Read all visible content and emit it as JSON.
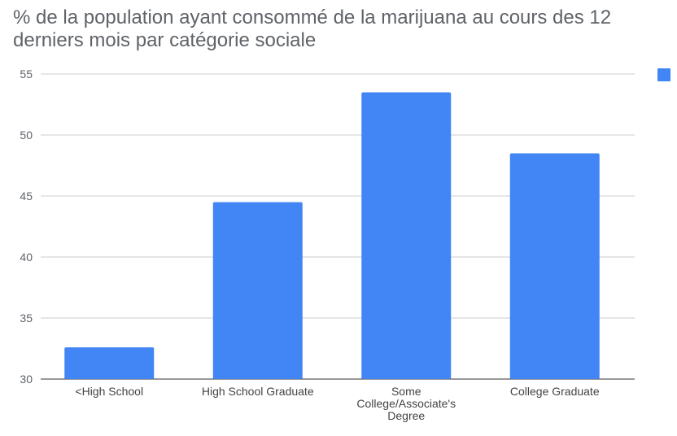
{
  "chart_data": {
    "type": "bar",
    "title": "% de la population ayant consommé de la marijuana au cours des 12 derniers mois par catégorie sociale",
    "categories": [
      "<High School",
      "High School Graduate",
      "Some College/Associate's Degree",
      "College Graduate"
    ],
    "category_lines": [
      [
        "<High School"
      ],
      [
        "High School Graduate"
      ],
      [
        "Some",
        "College/Associate's",
        "Degree"
      ],
      [
        "College Graduate"
      ]
    ],
    "series": [
      {
        "values": [
          32.6,
          44.5,
          53.5,
          48.5
        ]
      }
    ],
    "ylim": [
      30,
      55
    ],
    "yticks": [
      30,
      35,
      40,
      45,
      50,
      55
    ],
    "grid": true,
    "legend": "top-right",
    "colors": {
      "bar": "#4285f4",
      "grid": "#cccccc",
      "text": "#5f6368"
    }
  }
}
